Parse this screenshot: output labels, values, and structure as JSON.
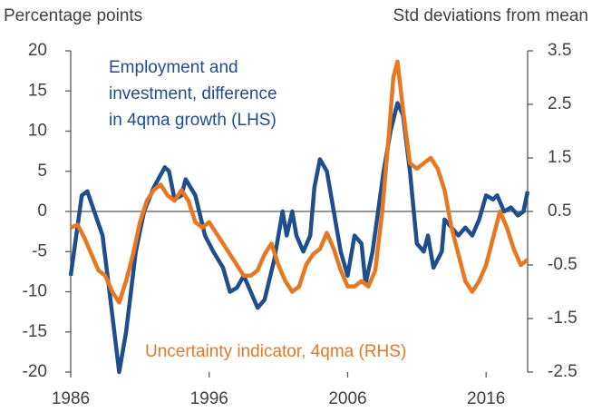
{
  "chart_data": {
    "type": "line",
    "ylabel": "Percentage points",
    "y2label": "Std deviations from mean",
    "annotations": [
      {
        "lines": [
          "Employment  and",
          "investment, difference",
          "in 4qma growth (LHS)"
        ],
        "color": "#1f4e8c"
      },
      {
        "lines": [
          "Uncertainty indicator, 4qma (RHS)"
        ],
        "color": "#e87722"
      }
    ],
    "xlim": [
      1986,
      2019
    ],
    "xticks": [
      1986,
      1996,
      2006,
      2016
    ],
    "ylim": [
      -20,
      20
    ],
    "yticks": [
      -20,
      -15,
      -10,
      -5,
      0,
      5,
      10,
      15,
      20
    ],
    "y2lim": [
      -2.5,
      3.5
    ],
    "y2ticks": [
      -2.5,
      -1.5,
      -0.5,
      0.5,
      1.5,
      2.5,
      3.5
    ],
    "zero_line": true,
    "series": [
      {
        "color": "#1f4e8c",
        "x": [
          1986,
          1986.8,
          1987.2,
          1988.3,
          1988.8,
          1989.5,
          1990,
          1990.7,
          1991.3,
          1992,
          1992.8,
          1993.1,
          1993.5,
          1994,
          1994.3,
          1995,
          1995.7,
          1996.3,
          1997,
          1997.5,
          1998,
          1998.5,
          1999,
          1999.5,
          2000,
          2000.7,
          2001.3,
          2001.6,
          2002,
          2002.3,
          2002.8,
          2003.3,
          2003.6,
          2004,
          2004.5,
          2005,
          2005.5,
          2006,
          2006.5,
          2007,
          2007.3,
          2007.8,
          2008.2,
          2008.6,
          2009.1,
          2009.6,
          2010,
          2010.5,
          2011,
          2011.5,
          2011.8,
          2012.2,
          2012.8,
          2013,
          2013.5,
          2014,
          2014.5,
          2015,
          2015.5,
          2016,
          2016.5,
          2016.8,
          2017.3,
          2017.8,
          2018.3,
          2018.7,
          2019
        ],
        "values": [
          -8,
          2,
          2.5,
          -3,
          -10,
          -20,
          -15,
          -5,
          0,
          3,
          5.5,
          5,
          1.5,
          2,
          4,
          2,
          -3,
          -5,
          -7,
          -10,
          -9.5,
          -8,
          -10,
          -12,
          -11,
          -6,
          0,
          -3,
          0,
          -3,
          -5,
          -3,
          3,
          6.5,
          5,
          0,
          -5,
          -8,
          -3,
          -4,
          -9,
          -5,
          0,
          5,
          10,
          13.5,
          12,
          5,
          -4,
          -5,
          -3,
          -7,
          -5,
          -1,
          -2,
          -3,
          -2,
          -3,
          -1,
          2,
          1.5,
          2,
          0,
          0.5,
          -0.5,
          0,
          2.5
        ]
      },
      {
        "color": "#e87722",
        "axis": "y2",
        "x": [
          1986,
          1986.5,
          1987,
          1987.5,
          1988,
          1988.5,
          1989,
          1989.5,
          1990,
          1990.5,
          1991,
          1991.5,
          1992,
          1992.5,
          1993,
          1993.5,
          1994,
          1994.5,
          1995,
          1995.5,
          1996,
          1996.5,
          1997,
          1997.5,
          1998,
          1998.5,
          1999,
          1999.5,
          2000,
          2000.5,
          2001,
          2001.5,
          2002,
          2002.5,
          2003,
          2003.5,
          2004,
          2004.5,
          2005,
          2005.5,
          2006,
          2006.5,
          2007,
          2007.5,
          2008,
          2008.5,
          2009,
          2009.3,
          2009.6,
          2010,
          2010.5,
          2011,
          2011.5,
          2012,
          2012.5,
          2013,
          2013.5,
          2014,
          2014.5,
          2015,
          2015.5,
          2016,
          2016.5,
          2017,
          2017.5,
          2018,
          2018.5,
          2019
        ],
        "values": [
          0.2,
          0.25,
          0,
          -0.3,
          -0.6,
          -0.7,
          -1,
          -1.2,
          -0.8,
          -0.3,
          0.3,
          0.7,
          0.9,
          1,
          0.8,
          0.7,
          0.9,
          0.7,
          0.3,
          0.2,
          0.3,
          0.1,
          -0.1,
          -0.3,
          -0.5,
          -0.7,
          -0.7,
          -0.6,
          -0.3,
          -0.1,
          -0.5,
          -0.8,
          -1,
          -0.9,
          -0.5,
          -0.3,
          -0.2,
          0.1,
          -0.2,
          -0.6,
          -0.9,
          -0.9,
          -0.8,
          -0.9,
          -0.6,
          0.5,
          2,
          3,
          3.3,
          2.4,
          1.4,
          1.3,
          1.4,
          1.5,
          1.3,
          0.9,
          0.2,
          -0.3,
          -0.8,
          -1,
          -0.8,
          -0.5,
          0,
          0.5,
          0.2,
          -0.2,
          -0.5,
          -0.4
        ]
      }
    ]
  }
}
